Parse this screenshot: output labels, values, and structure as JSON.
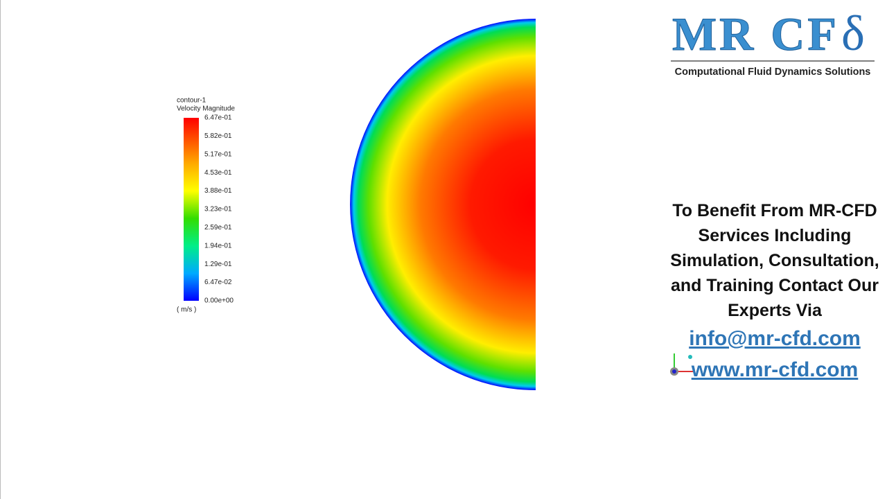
{
  "legend": {
    "title": "contour-1",
    "quantity": "Velocity Magnitude",
    "labels": [
      "6.47e-01",
      "5.82e-01",
      "5.17e-01",
      "4.53e-01",
      "3.88e-01",
      "3.23e-01",
      "2.59e-01",
      "1.94e-01",
      "1.29e-01",
      "6.47e-02",
      "0.00e+00"
    ],
    "unit": "( m/s )"
  },
  "logo": {
    "mark": "MR CF",
    "symbol": "δ",
    "tagline": "Computational Fluid Dynamics Solutions"
  },
  "contact": {
    "lines": [
      "To Benefit From MR-CFD",
      "Services Including",
      "Simulation, Consultation,",
      "and Training Contact Our",
      "Experts Via"
    ],
    "email": "info@mr-cfd.com",
    "website": "www.mr-cfd.com"
  }
}
